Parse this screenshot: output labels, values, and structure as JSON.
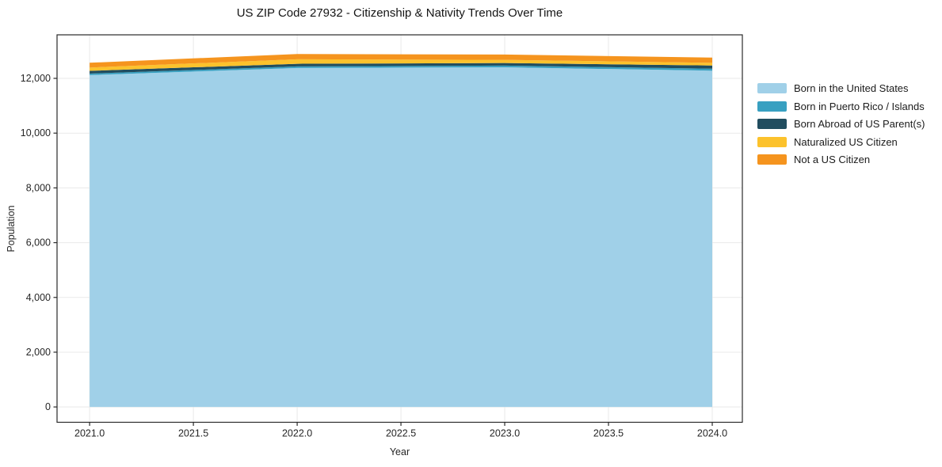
{
  "title": "US ZIP Code 27932 - Citizenship & Nativity Trends Over Time",
  "chart_data": {
    "type": "area",
    "stacked": true,
    "title": "US ZIP Code 27932 - Citizenship & Nativity Trends Over Time",
    "xlabel": "Year",
    "ylabel": "Population",
    "x": [
      2021,
      2022,
      2023,
      2024
    ],
    "series": [
      {
        "name": "Born in the United States",
        "color": "#a0d0e8",
        "values": [
          12120,
          12380,
          12405,
          12280
        ]
      },
      {
        "name": "Born in Puerto Rico / Islands",
        "color": "#38a0c1",
        "values": [
          55,
          57,
          60,
          75
        ]
      },
      {
        "name": "Born Abroad of US Parent(s)",
        "color": "#214d5f",
        "values": [
          100,
          96,
          95,
          116
        ]
      },
      {
        "name": "Naturalized US Citizen",
        "color": "#fcc22c",
        "values": [
          120,
          165,
          115,
          98
        ]
      },
      {
        "name": "Not a US Citizen",
        "color": "#f5941e",
        "values": [
          175,
          192,
          195,
          191
        ]
      }
    ],
    "x_ticks": [
      "2021.0",
      "2021.5",
      "2022.0",
      "2022.5",
      "2023.0",
      "2023.5",
      "2024.0"
    ],
    "x_tick_values": [
      2021,
      2021.5,
      2022,
      2022.5,
      2023,
      2023.5,
      2024
    ],
    "y_ticks": [
      "0",
      "2,000",
      "4,000",
      "6,000",
      "8,000",
      "10,000",
      "12,000"
    ],
    "y_tick_values": [
      0,
      2000,
      4000,
      6000,
      8000,
      10000,
      12000
    ],
    "xlim": [
      2020.843,
      2024.145
    ],
    "ylim": [
      -560,
      13590
    ],
    "grid": true,
    "legend_position": "right",
    "colors": {
      "grid": "#e9e9e9",
      "spine": "#2a2a2a",
      "background": "#ffffff"
    }
  }
}
